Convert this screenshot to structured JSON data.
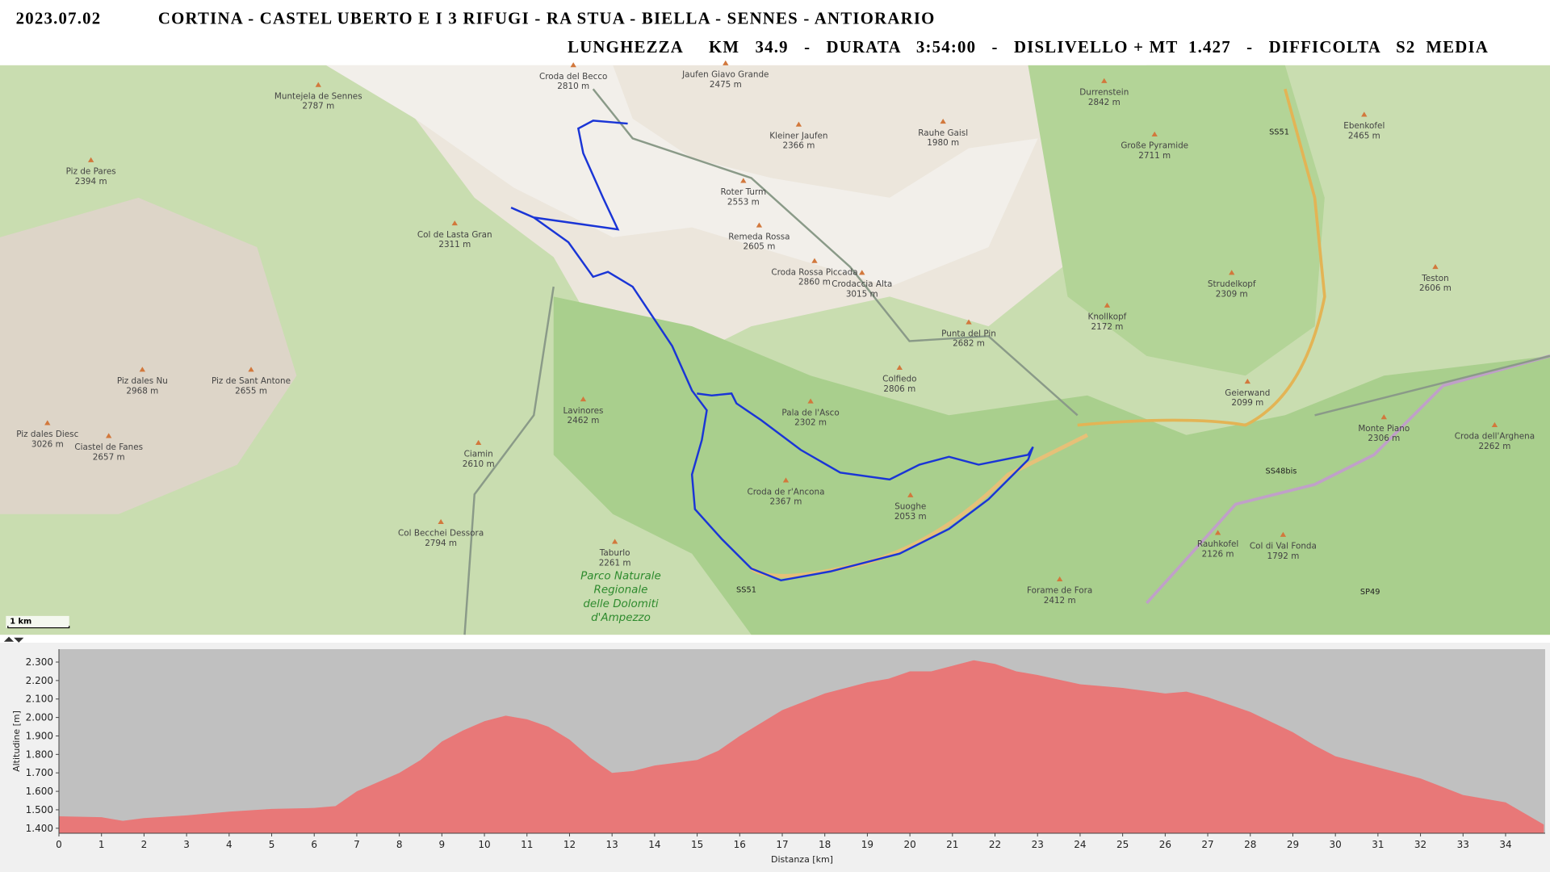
{
  "header": {
    "date": "2023.07.02",
    "title": "CORTINA - CASTEL UBERTO E I 3 RIFUGI - RA STUA - BIELLA - SENNES - ANTIORARIO",
    "stats": "LUNGHEZZA     KM   34.9   -   DURATA   3:54:00   -   DISLIVELLO + MT  1.427   -   DIFFICOLTA   S2  MEDIA"
  },
  "map": {
    "peaks": [
      {
        "name": "Piz de Pares",
        "elev": "2394 m"
      },
      {
        "name": "Col de Lasta Gran",
        "elev": "2311 m"
      },
      {
        "name": "Muntejela de Sennes",
        "elev": "2787 m"
      },
      {
        "name": "Croda del Becco",
        "elev": "2810 m"
      },
      {
        "name": "Jaufen Giavo Grande",
        "elev": "2475 m"
      },
      {
        "name": "Kleiner Jaufen",
        "elev": "2366 m"
      },
      {
        "name": "Roter Turm",
        "elev": "2553 m"
      },
      {
        "name": "Remeda Rossa",
        "elev": "2605 m"
      },
      {
        "name": "Croda Rossa Piccada",
        "elev": "2860 m"
      },
      {
        "name": "Crodaccia Alta",
        "elev": "3015 m"
      },
      {
        "name": "Punta del Pin",
        "elev": "2682 m"
      },
      {
        "name": "Colfiedo",
        "elev": "2806 m"
      },
      {
        "name": "Pala de l'Asco",
        "elev": "2302 m"
      },
      {
        "name": "Lavinores",
        "elev": "2462 m"
      },
      {
        "name": "Ciamin",
        "elev": "2610 m"
      },
      {
        "name": "Croda de r'Ancona",
        "elev": "2367 m"
      },
      {
        "name": "Suoghe",
        "elev": "2053 m"
      },
      {
        "name": "Col Becchei Dessora",
        "elev": "2794 m"
      },
      {
        "name": "Taburlo",
        "elev": "2261 m"
      },
      {
        "name": "Piz dales Nu",
        "elev": "2968 m"
      },
      {
        "name": "Piz de Sant Antone",
        "elev": "2655 m"
      },
      {
        "name": "Ciastel de Fanes",
        "elev": "2657 m"
      },
      {
        "name": "Piz dales Diesc",
        "elev": "3026 m"
      },
      {
        "name": "Durrenstein",
        "elev": "2842 m"
      },
      {
        "name": "Große Pyramide",
        "elev": "2711 m"
      },
      {
        "name": "Rauhe Gaisl",
        "elev": "1980 m"
      },
      {
        "name": "Strudelkopf",
        "elev": "2309 m"
      },
      {
        "name": "Knollkopf",
        "elev": "2172 m"
      },
      {
        "name": "Geierwand",
        "elev": "2099 m"
      },
      {
        "name": "Monte Piano",
        "elev": "2306 m"
      },
      {
        "name": "Croda dell'Arghena",
        "elev": "2262 m"
      },
      {
        "name": "Rauhkofel",
        "elev": "2126 m"
      },
      {
        "name": "Col di Val Fonda",
        "elev": "1792 m"
      },
      {
        "name": "Teston",
        "elev": "2606 m"
      },
      {
        "name": "Ebenkofel",
        "elev": "2465 m"
      },
      {
        "name": "Forame de Fora",
        "elev": "2412 m"
      }
    ],
    "roads": [
      "SS51",
      "SS51",
      "SS48bis",
      "SP49"
    ],
    "park": [
      "Parco Naturale",
      "Regionale",
      "delle Dolomiti",
      "d'Ampezzo"
    ],
    "scale": "1 km"
  },
  "chart_data": {
    "type": "area",
    "xlabel": "Distanza [km]",
    "ylabel": "Altitudine [m]",
    "color": "#e87878",
    "grid": false,
    "x": [
      0,
      1,
      1.5,
      2,
      3,
      4,
      5,
      6,
      6.5,
      7,
      8,
      8.5,
      9,
      9.5,
      10,
      10.5,
      11,
      11.5,
      12,
      12.5,
      13,
      13.5,
      14,
      15,
      15.5,
      16,
      16.5,
      17,
      18,
      19,
      19.5,
      20,
      20.5,
      21,
      21.5,
      22,
      22.5,
      23,
      24,
      25,
      26,
      26.5,
      27,
      28,
      29,
      29.5,
      30,
      31,
      32,
      33,
      34,
      34.9
    ],
    "values": [
      1465,
      1460,
      1440,
      1455,
      1470,
      1490,
      1505,
      1510,
      1520,
      1600,
      1700,
      1770,
      1870,
      1930,
      1980,
      2010,
      1990,
      1950,
      1880,
      1780,
      1700,
      1710,
      1740,
      1770,
      1820,
      1900,
      1970,
      2040,
      2130,
      2190,
      2210,
      2250,
      2250,
      2280,
      2310,
      2290,
      2250,
      2230,
      2180,
      2160,
      2130,
      2140,
      2110,
      2030,
      1920,
      1850,
      1790,
      1730,
      1670,
      1580,
      1540,
      1420
    ],
    "xlim": [
      0,
      34.93
    ],
    "ylim": [
      1373,
      2370
    ],
    "xticks": [
      0,
      1,
      2,
      3,
      4,
      5,
      6,
      7,
      8,
      9,
      10,
      11,
      12,
      13,
      14,
      15,
      16,
      17,
      18,
      19,
      20,
      21,
      22,
      23,
      24,
      25,
      26,
      27,
      28,
      29,
      30,
      31,
      32,
      33,
      34
    ],
    "yticks": [
      {
        "value": 1400,
        "label": "1.400"
      },
      {
        "value": 1500,
        "label": "1.500"
      },
      {
        "value": 1600,
        "label": "1.600"
      },
      {
        "value": 1700,
        "label": "1.700"
      },
      {
        "value": 1800,
        "label": "1.800"
      },
      {
        "value": 1900,
        "label": "1.900"
      },
      {
        "value": 2000,
        "label": "2.000"
      },
      {
        "value": 2100,
        "label": "2.100"
      },
      {
        "value": 2200,
        "label": "2.200"
      },
      {
        "value": 2300,
        "label": "2.300"
      }
    ]
  }
}
